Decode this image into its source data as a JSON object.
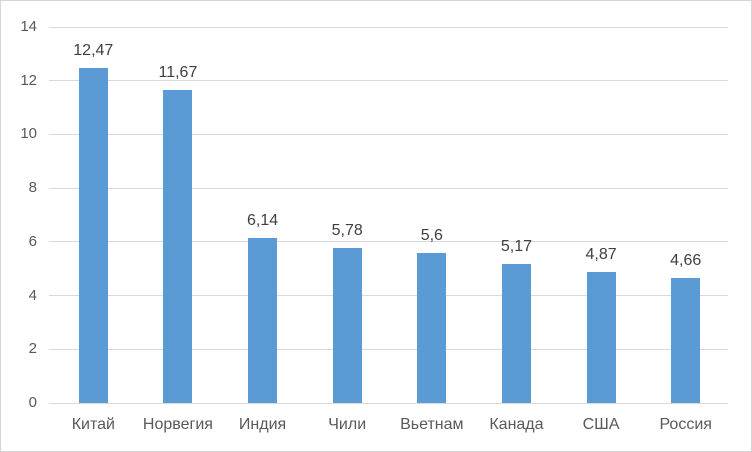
{
  "chart_data": {
    "type": "bar",
    "title": "",
    "xlabel": "",
    "ylabel": "",
    "categories": [
      "Китай",
      "Норвегия",
      "Индия",
      "Чили",
      "Вьетнам",
      "Канада",
      "США",
      "Россия"
    ],
    "values": [
      12.47,
      11.67,
      6.14,
      5.78,
      5.6,
      5.17,
      4.87,
      4.66
    ],
    "value_labels": [
      "12,47",
      "11,67",
      "6,14",
      "5,78",
      "5,6",
      "5,17",
      "4,87",
      "4,66"
    ],
    "ylim": [
      0,
      14
    ],
    "ytick_step": 2,
    "ytick_labels": [
      "0",
      "2",
      "4",
      "6",
      "8",
      "10",
      "12",
      "14"
    ],
    "grid": true,
    "legend": false,
    "colors": {
      "bar": "#5b9bd5",
      "gridline": "#d9d9d9",
      "axis_text": "#595959",
      "data_label_text": "#404040",
      "frame_border": "#d4d4d4",
      "background": "#ffffff"
    }
  }
}
